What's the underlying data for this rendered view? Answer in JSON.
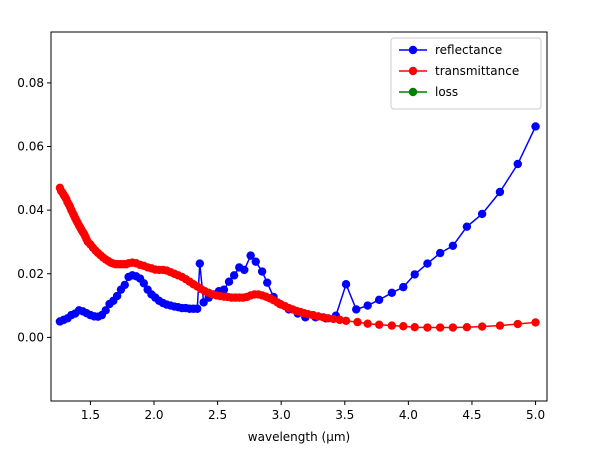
{
  "chart_data": {
    "type": "line",
    "title": "",
    "xlabel": "wavelength (µm)",
    "ylabel": "",
    "xlim": [
      1.19,
      5.09
    ],
    "ylim": [
      -0.02,
      0.096
    ],
    "xticks": [
      "1.5",
      "2.0",
      "2.5",
      "3.0",
      "3.5",
      "4.0",
      "4.5",
      "5.0"
    ],
    "yticks": [
      "0.00",
      "0.02",
      "0.04",
      "0.06",
      "0.08"
    ],
    "grid": false,
    "legend_position": "top-right",
    "series": [
      {
        "name": "reflectance",
        "color": "#0000ff",
        "points": [
          [
            1.26,
            0.005
          ],
          [
            1.29,
            0.0055
          ],
          [
            1.32,
            0.006
          ],
          [
            1.35,
            0.007
          ],
          [
            1.38,
            0.0075
          ],
          [
            1.41,
            0.0085
          ],
          [
            1.44,
            0.0082
          ],
          [
            1.47,
            0.0076
          ],
          [
            1.5,
            0.007
          ],
          [
            1.53,
            0.0066
          ],
          [
            1.56,
            0.0065
          ],
          [
            1.59,
            0.007
          ],
          [
            1.62,
            0.0085
          ],
          [
            1.65,
            0.0105
          ],
          [
            1.68,
            0.0115
          ],
          [
            1.71,
            0.013
          ],
          [
            1.74,
            0.015
          ],
          [
            1.77,
            0.0165
          ],
          [
            1.8,
            0.019
          ],
          [
            1.83,
            0.0195
          ],
          [
            1.86,
            0.0192
          ],
          [
            1.89,
            0.0185
          ],
          [
            1.92,
            0.017
          ],
          [
            1.95,
            0.015
          ],
          [
            1.98,
            0.0135
          ],
          [
            2.01,
            0.0125
          ],
          [
            2.04,
            0.0115
          ],
          [
            2.07,
            0.0108
          ],
          [
            2.1,
            0.0103
          ],
          [
            2.13,
            0.01
          ],
          [
            2.16,
            0.0097
          ],
          [
            2.19,
            0.0095
          ],
          [
            2.22,
            0.0092
          ],
          [
            2.25,
            0.0092
          ],
          [
            2.28,
            0.009
          ],
          [
            2.31,
            0.009
          ],
          [
            2.34,
            0.009
          ],
          [
            2.36,
            0.0232
          ],
          [
            2.39,
            0.011
          ],
          [
            2.43,
            0.0125
          ],
          [
            2.47,
            0.0135
          ],
          [
            2.51,
            0.0145
          ],
          [
            2.55,
            0.015
          ],
          [
            2.59,
            0.0175
          ],
          [
            2.63,
            0.0195
          ],
          [
            2.67,
            0.022
          ],
          [
            2.71,
            0.0212
          ],
          [
            2.76,
            0.0257
          ],
          [
            2.8,
            0.0238
          ],
          [
            2.85,
            0.0207
          ],
          [
            2.89,
            0.0172
          ],
          [
            2.94,
            0.0127
          ],
          [
            2.99,
            0.0105
          ],
          [
            3.06,
            0.0088
          ],
          [
            3.13,
            0.0075
          ],
          [
            3.19,
            0.0063
          ],
          [
            3.27,
            0.0063
          ],
          [
            3.35,
            0.006
          ],
          [
            3.43,
            0.0068
          ],
          [
            3.51,
            0.0167
          ],
          [
            3.59,
            0.0088
          ],
          [
            3.68,
            0.01
          ],
          [
            3.77,
            0.0118
          ],
          [
            3.87,
            0.014
          ],
          [
            3.96,
            0.0158
          ],
          [
            4.05,
            0.0198
          ],
          [
            4.15,
            0.0232
          ],
          [
            4.25,
            0.0265
          ],
          [
            4.35,
            0.0288
          ],
          [
            4.46,
            0.0348
          ],
          [
            4.58,
            0.0388
          ],
          [
            4.72,
            0.0457
          ],
          [
            4.86,
            0.0545
          ],
          [
            5.0,
            0.0663
          ]
        ]
      },
      {
        "name": "transmittance",
        "color": "#ff0000",
        "points": [
          [
            1.26,
            0.047
          ],
          [
            1.27,
            0.046
          ],
          [
            1.28,
            0.0455
          ],
          [
            1.29,
            0.0448
          ],
          [
            1.3,
            0.0442
          ],
          [
            1.31,
            0.0435
          ],
          [
            1.32,
            0.0425
          ],
          [
            1.33,
            0.0418
          ],
          [
            1.34,
            0.041
          ],
          [
            1.35,
            0.04
          ],
          [
            1.36,
            0.0392
          ],
          [
            1.37,
            0.0384
          ],
          [
            1.38,
            0.0375
          ],
          [
            1.39,
            0.0367
          ],
          [
            1.4,
            0.036
          ],
          [
            1.41,
            0.0352
          ],
          [
            1.42,
            0.0345
          ],
          [
            1.43,
            0.0338
          ],
          [
            1.44,
            0.0331
          ],
          [
            1.45,
            0.0325
          ],
          [
            1.46,
            0.0317
          ],
          [
            1.47,
            0.0308
          ],
          [
            1.48,
            0.03
          ],
          [
            1.5,
            0.0292
          ],
          [
            1.52,
            0.0282
          ],
          [
            1.54,
            0.0273
          ],
          [
            1.56,
            0.0265
          ],
          [
            1.58,
            0.0258
          ],
          [
            1.6,
            0.0251
          ],
          [
            1.62,
            0.0245
          ],
          [
            1.64,
            0.024
          ],
          [
            1.66,
            0.0235
          ],
          [
            1.68,
            0.0232
          ],
          [
            1.7,
            0.023
          ],
          [
            1.72,
            0.023
          ],
          [
            1.74,
            0.023
          ],
          [
            1.76,
            0.023
          ],
          [
            1.78,
            0.023
          ],
          [
            1.8,
            0.0233
          ],
          [
            1.83,
            0.0235
          ],
          [
            1.86,
            0.0233
          ],
          [
            1.89,
            0.0228
          ],
          [
            1.92,
            0.0225
          ],
          [
            1.95,
            0.022
          ],
          [
            1.98,
            0.0217
          ],
          [
            2.01,
            0.0213
          ],
          [
            2.04,
            0.0212
          ],
          [
            2.07,
            0.0212
          ],
          [
            2.1,
            0.021
          ],
          [
            2.13,
            0.0205
          ],
          [
            2.16,
            0.02
          ],
          [
            2.19,
            0.0195
          ],
          [
            2.22,
            0.019
          ],
          [
            2.25,
            0.0183
          ],
          [
            2.28,
            0.0175
          ],
          [
            2.31,
            0.0167
          ],
          [
            2.34,
            0.016
          ],
          [
            2.37,
            0.0152
          ],
          [
            2.4,
            0.0145
          ],
          [
            2.43,
            0.014
          ],
          [
            2.46,
            0.0135
          ],
          [
            2.49,
            0.0132
          ],
          [
            2.52,
            0.013
          ],
          [
            2.55,
            0.0128
          ],
          [
            2.58,
            0.0127
          ],
          [
            2.61,
            0.0125
          ],
          [
            2.64,
            0.0125
          ],
          [
            2.67,
            0.0125
          ],
          [
            2.7,
            0.0125
          ],
          [
            2.73,
            0.0127
          ],
          [
            2.76,
            0.0132
          ],
          [
            2.79,
            0.0135
          ],
          [
            2.82,
            0.0135
          ],
          [
            2.85,
            0.0132
          ],
          [
            2.88,
            0.0128
          ],
          [
            2.91,
            0.0123
          ],
          [
            2.94,
            0.0117
          ],
          [
            2.97,
            0.011
          ],
          [
            3.0,
            0.0103
          ],
          [
            3.03,
            0.0098
          ],
          [
            3.06,
            0.0092
          ],
          [
            3.09,
            0.0088
          ],
          [
            3.12,
            0.0083
          ],
          [
            3.15,
            0.008
          ],
          [
            3.18,
            0.0076
          ],
          [
            3.21,
            0.0073
          ],
          [
            3.25,
            0.007
          ],
          [
            3.29,
            0.0066
          ],
          [
            3.33,
            0.0063
          ],
          [
            3.37,
            0.006
          ],
          [
            3.41,
            0.0058
          ],
          [
            3.46,
            0.0055
          ],
          [
            3.51,
            0.0052
          ],
          [
            3.6,
            0.0048
          ],
          [
            3.68,
            0.0043
          ],
          [
            3.77,
            0.004
          ],
          [
            3.87,
            0.0037
          ],
          [
            3.96,
            0.0035
          ],
          [
            4.05,
            0.0032
          ],
          [
            4.15,
            0.0031
          ],
          [
            4.25,
            0.0031
          ],
          [
            4.35,
            0.0031
          ],
          [
            4.46,
            0.0032
          ],
          [
            4.58,
            0.0034
          ],
          [
            4.72,
            0.0037
          ],
          [
            4.86,
            0.0042
          ],
          [
            5.0,
            0.0047
          ]
        ]
      },
      {
        "name": "loss",
        "color": "#008000",
        "points": []
      }
    ]
  }
}
